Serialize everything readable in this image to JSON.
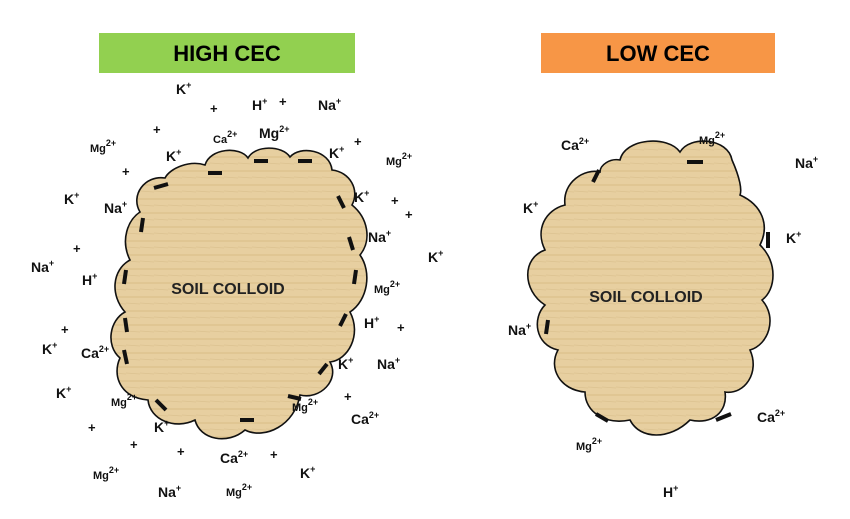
{
  "high_cec": {
    "title": "HIGH CEC",
    "banner_color": "#92d050",
    "colloid_label": "SOIL COLLOID",
    "ions": [
      {
        "base": "H",
        "charge": "+"
      },
      {
        "base": "K",
        "charge": "+"
      },
      {
        "base": "Na",
        "charge": "+"
      },
      {
        "base": "Mg",
        "charge": "2+"
      },
      {
        "base": "Ca",
        "charge": "2+"
      },
      {
        "base": "K",
        "charge": "+"
      },
      {
        "base": "Mg",
        "charge": "2+"
      },
      {
        "base": "K",
        "charge": "+"
      },
      {
        "base": "Mg",
        "charge": "2+"
      },
      {
        "base": "K",
        "charge": "+"
      },
      {
        "base": "Na",
        "charge": "+"
      },
      {
        "base": "K",
        "charge": "+"
      },
      {
        "base": "Na",
        "charge": "+"
      },
      {
        "base": "Na",
        "charge": "+"
      },
      {
        "base": "H",
        "charge": "+"
      },
      {
        "base": "K",
        "charge": "+"
      },
      {
        "base": "Mg",
        "charge": "2+"
      },
      {
        "base": "H",
        "charge": "+"
      },
      {
        "base": "K",
        "charge": "+"
      },
      {
        "base": "Ca",
        "charge": "2+"
      },
      {
        "base": "K",
        "charge": "+"
      },
      {
        "base": "Na",
        "charge": "+"
      },
      {
        "base": "K",
        "charge": "+"
      },
      {
        "base": "Mg",
        "charge": "2+"
      },
      {
        "base": "Mg",
        "charge": "2+"
      },
      {
        "base": "K",
        "charge": "+"
      },
      {
        "base": "Ca",
        "charge": "2+"
      },
      {
        "base": "Mg",
        "charge": "2+"
      },
      {
        "base": "Ca",
        "charge": "2+"
      },
      {
        "base": "K",
        "charge": "+"
      },
      {
        "base": "Na",
        "charge": "+"
      },
      {
        "base": "Mg",
        "charge": "2+"
      }
    ]
  },
  "low_cec": {
    "title": "LOW CEC",
    "banner_color": "#f79646",
    "colloid_label": "SOIL COLLOID",
    "ions": [
      {
        "base": "Ca",
        "charge": "2+"
      },
      {
        "base": "Mg",
        "charge": "2+"
      },
      {
        "base": "Na",
        "charge": "+"
      },
      {
        "base": "K",
        "charge": "+"
      },
      {
        "base": "K",
        "charge": "+"
      },
      {
        "base": "Na",
        "charge": "+"
      },
      {
        "base": "Ca",
        "charge": "2+"
      },
      {
        "base": "Mg",
        "charge": "2+"
      },
      {
        "base": "H",
        "charge": "+"
      }
    ]
  },
  "colloid_color": "#e8d0a0",
  "negative_charge_symbol": "−"
}
